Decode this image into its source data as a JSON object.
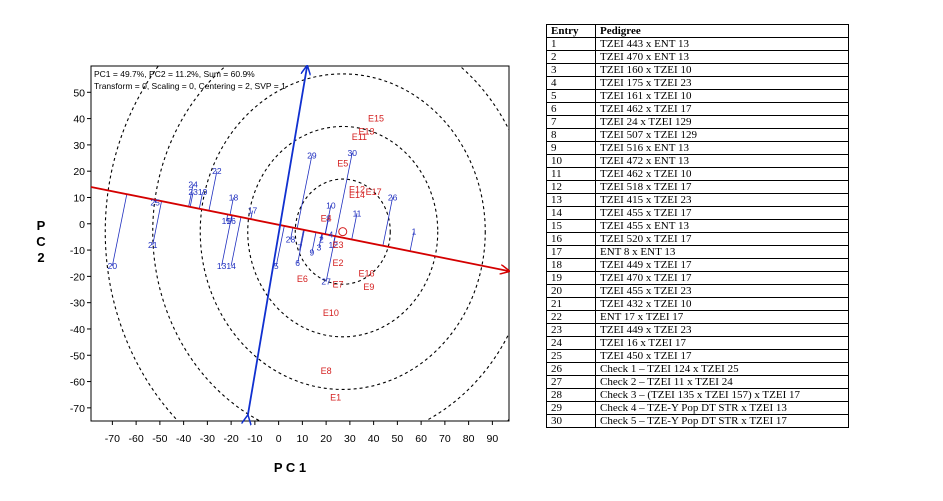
{
  "chart_data": {
    "type": "scatter",
    "title_lines": [
      "PC1 = 49.7%, PC2 = 11.2%, Sum = 60.9%",
      "Transform = 0, Scaling = 0, Centering = 2, SVP = 1"
    ],
    "xlabel": "P C 1",
    "ylabel_chars": [
      "P",
      "C",
      "2"
    ],
    "xlim": [
      -79,
      97
    ],
    "ylim": [
      -75,
      60
    ],
    "x_ticks": [
      -70,
      -60,
      -50,
      -40,
      -30,
      -20,
      -10,
      0,
      10,
      20,
      30,
      40,
      50,
      60,
      70,
      80,
      90
    ],
    "y_ticks": [
      50,
      40,
      30,
      20,
      10,
      0,
      -10,
      -20,
      -30,
      -40,
      -50,
      -60,
      -70
    ],
    "colors": {
      "genotype": "#1f2fbf",
      "environment": "#d42020",
      "axis": "#d40000",
      "perpendicular": "#1030d0",
      "circle": "#000000"
    },
    "genotypes": [
      {
        "label": "1",
        "x": 57,
        "y": -3
      },
      {
        "label": "2",
        "x": 18,
        "y": -6
      },
      {
        "label": "3",
        "x": 17,
        "y": -9
      },
      {
        "label": "4",
        "x": 22,
        "y": -4
      },
      {
        "label": "5",
        "x": -1,
        "y": -16
      },
      {
        "label": "6",
        "x": 8,
        "y": -15
      },
      {
        "label": "7",
        "x": 9,
        "y": -9
      },
      {
        "label": "8",
        "x": 21,
        "y": 2
      },
      {
        "label": "9",
        "x": 14,
        "y": -11
      },
      {
        "label": "10",
        "x": 22,
        "y": 7
      },
      {
        "label": "11",
        "x": 33,
        "y": 4
      },
      {
        "label": "12",
        "x": 23,
        "y": -8
      },
      {
        "label": "13",
        "x": -24,
        "y": -16
      },
      {
        "label": "14",
        "x": -20,
        "y": -16
      },
      {
        "label": "15",
        "x": -22,
        "y": 1
      },
      {
        "label": "16",
        "x": -20,
        "y": 1
      },
      {
        "label": "17",
        "x": -11,
        "y": 5
      },
      {
        "label": "18",
        "x": -19,
        "y": 10
      },
      {
        "label": "19",
        "x": -32,
        "y": 12
      },
      {
        "label": "20",
        "x": -70,
        "y": -16
      },
      {
        "label": "21",
        "x": -53,
        "y": -8
      },
      {
        "label": "22",
        "x": -26,
        "y": 20
      },
      {
        "label": "23",
        "x": -36,
        "y": 12
      },
      {
        "label": "24",
        "x": -36,
        "y": 15
      },
      {
        "label": "25",
        "x": -52,
        "y": 8
      },
      {
        "label": "26",
        "x": 48,
        "y": 10
      },
      {
        "label": "27",
        "x": 20,
        "y": -22
      },
      {
        "label": "28",
        "x": 5,
        "y": -6
      },
      {
        "label": "29",
        "x": 14,
        "y": 26
      },
      {
        "label": "30",
        "x": 31,
        "y": 27
      }
    ],
    "environments": [
      {
        "label": "E1",
        "x": 24,
        "y": -66
      },
      {
        "label": "E2",
        "x": 25,
        "y": -15
      },
      {
        "label": "E3",
        "x": 25,
        "y": -8
      },
      {
        "label": "E4",
        "x": 20,
        "y": 2
      },
      {
        "label": "E5",
        "x": 27,
        "y": 23
      },
      {
        "label": "E6",
        "x": 10,
        "y": -21
      },
      {
        "label": "E7",
        "x": 25,
        "y": -23
      },
      {
        "label": "E8",
        "x": 20,
        "y": -56
      },
      {
        "label": "E9",
        "x": 38,
        "y": -24
      },
      {
        "label": "E10",
        "x": 22,
        "y": -34
      },
      {
        "label": "E11",
        "x": 34,
        "y": 33
      },
      {
        "label": "E12",
        "x": 33,
        "y": 13
      },
      {
        "label": "E13",
        "x": 37,
        "y": 35
      },
      {
        "label": "E14",
        "x": 33,
        "y": 11
      },
      {
        "label": "E15",
        "x": 41,
        "y": 40
      },
      {
        "label": "E16",
        "x": 37,
        "y": -19
      },
      {
        "label": "E17",
        "x": 40,
        "y": 12
      }
    ],
    "ideal_point": {
      "x": 27,
      "y": -3
    },
    "circle_radii": [
      20,
      40,
      60,
      80,
      100
    ],
    "average_environment_axis": {
      "from": [
        -79,
        14
      ],
      "to": [
        97,
        -18
      ]
    },
    "perpendicular_axis": {
      "from": [
        -13,
        -73
      ],
      "to": [
        12,
        60
      ]
    }
  },
  "table": {
    "headers": [
      "Entry",
      "Pedigree"
    ],
    "rows": [
      [
        "1",
        "TZEI 443 x ENT 13"
      ],
      [
        "2",
        "TZEI 470 x ENT 13"
      ],
      [
        "3",
        "TZEI 160 x TZEI 10"
      ],
      [
        "4",
        "TZEI 175 x TZEI 23"
      ],
      [
        "5",
        "TZEI 161 x TZEI 10"
      ],
      [
        "6",
        "TZEI 462 x TZEI 17"
      ],
      [
        "7",
        "TZEI 24 x TZEI 129"
      ],
      [
        "8",
        "TZEI 507 x TZEI 129"
      ],
      [
        "9",
        "TZEI 516 x ENT 13"
      ],
      [
        "10",
        "TZEI 472 x ENT 13"
      ],
      [
        "11",
        "TZEI 462 x TZEI 10"
      ],
      [
        "12",
        "TZEI 518 x TZEI 17"
      ],
      [
        "13",
        "TZEI 415 x TZEI 23"
      ],
      [
        "14",
        "TZEI 455 x TZEI 17"
      ],
      [
        "15",
        "TZEI 455 x ENT 13"
      ],
      [
        "16",
        "TZEI 520 x TZEI 17"
      ],
      [
        "17",
        "ENT 8 x ENT 13"
      ],
      [
        "18",
        "TZEI 449 x TZEI 17"
      ],
      [
        "19",
        "TZEI 470 x TZEI 17"
      ],
      [
        "20",
        "TZEI 455 x TZEI 23"
      ],
      [
        "21",
        "TZEI 432 x TZEI 10"
      ],
      [
        "22",
        "ENT 17 x TZEI 17"
      ],
      [
        "23",
        "TZEI 449 x TZEI 23"
      ],
      [
        "24",
        "TZEI 16 x TZEI 17"
      ],
      [
        "25",
        "TZEI 450 x TZEI 17"
      ],
      [
        "26",
        "Check 1 – TZEI 124 x TZEI 25"
      ],
      [
        "27",
        "Check 2 – TZEI 11 x TZEI 24"
      ],
      [
        "28",
        "Check 3 – (TZEI 135 x TZEI 157) x TZEI 17"
      ],
      [
        "29",
        "Check 4 – TZE-Y Pop DT STR x TZEI 13"
      ],
      [
        "30",
        "Check 5 – TZE-Y Pop DT STR x TZEI 17"
      ]
    ]
  }
}
